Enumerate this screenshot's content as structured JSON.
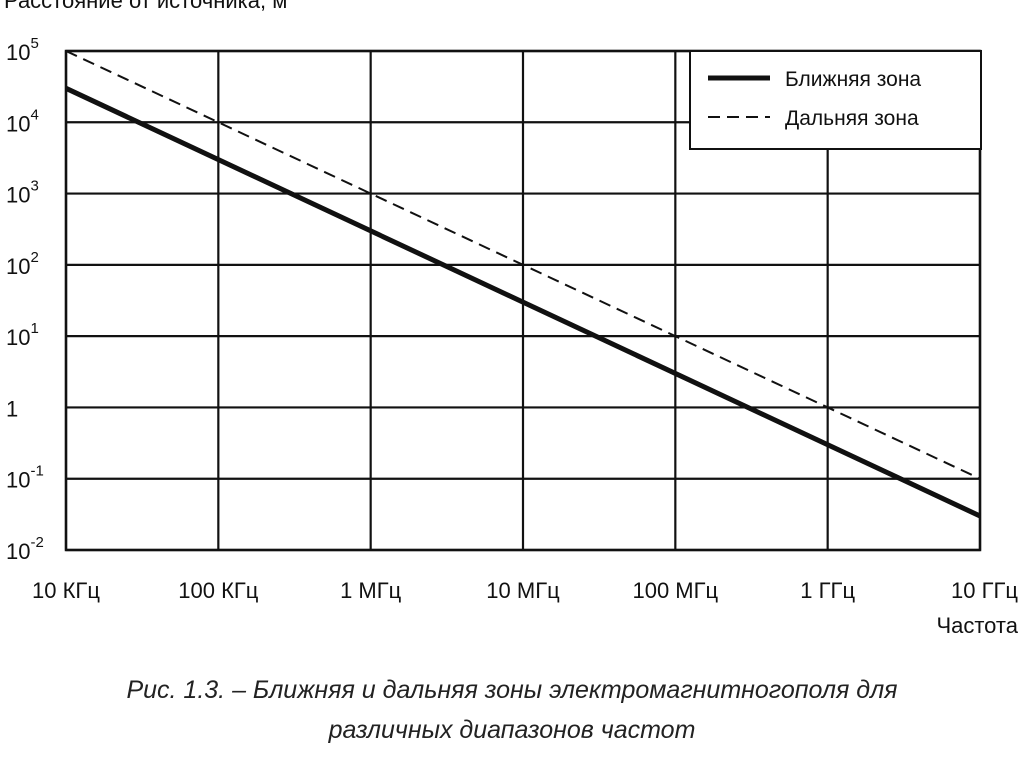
{
  "chart_data": {
    "type": "line",
    "ylabel": "Расстояние от источника, м",
    "xlabel": "Частота",
    "x_scale": "log",
    "y_scale": "log",
    "x_range_hz": [
      10000,
      10000000000
    ],
    "y_range_m": [
      0.01,
      100000
    ],
    "x_ticks": [
      {
        "value": 10000,
        "label": "10 КГц"
      },
      {
        "value": 100000,
        "label": "100 КГц"
      },
      {
        "value": 1000000,
        "label": "1 МГц"
      },
      {
        "value": 10000000,
        "label": "10 МГц"
      },
      {
        "value": 100000000,
        "label": "100 МГц"
      },
      {
        "value": 1000000000,
        "label": "1 ГГц"
      },
      {
        "value": 10000000000,
        "label": "10 ГГц"
      }
    ],
    "y_ticks": [
      {
        "value": 100000,
        "base": "10",
        "exp": "5"
      },
      {
        "value": 10000,
        "base": "10",
        "exp": "4"
      },
      {
        "value": 1000,
        "base": "10",
        "exp": "3"
      },
      {
        "value": 100,
        "base": "10",
        "exp": "2"
      },
      {
        "value": 10,
        "base": "10",
        "exp": "1"
      },
      {
        "value": 1,
        "base": "1",
        "exp": ""
      },
      {
        "value": 0.1,
        "base": "10",
        "exp": "-1"
      },
      {
        "value": 0.01,
        "base": "10",
        "exp": "-2"
      }
    ],
    "grid": true,
    "legend_position": "top-right",
    "series": [
      {
        "name": "Ближняя зона",
        "style": "solid",
        "x": [
          10000,
          10000000000
        ],
        "y": [
          30000,
          0.03
        ]
      },
      {
        "name": "Дальняя зона",
        "style": "dashed",
        "x": [
          10000,
          10000000000
        ],
        "y": [
          100000,
          0.1
        ]
      }
    ]
  },
  "caption": {
    "line1": "Рис. 1.3. –  Ближняя и дальняя зоны электромагнитногополя для",
    "line2": "различных диапазонов частот"
  },
  "colors": {
    "line": "#111111",
    "grid": "#111111",
    "background": "#ffffff"
  }
}
